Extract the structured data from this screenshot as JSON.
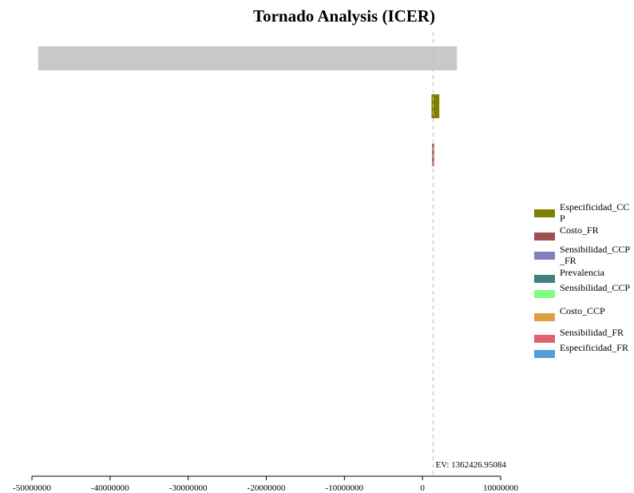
{
  "chart_data": {
    "type": "tornado",
    "title": "Tornado Analysis (ICER)",
    "expected_value": 1362426.95084,
    "ev_label": "EV: 1362426.95084",
    "xlim": [
      -50000000,
      10000000
    ],
    "x_ticks": [
      -50000000,
      -40000000,
      -30000000,
      -20000000,
      -10000000,
      0,
      10000000
    ],
    "x_tick_labels": [
      "-50000000",
      "-40000000",
      "-30000000",
      "-20000000",
      "-10000000",
      "0",
      "10000000"
    ],
    "bars": [
      {
        "low": -49200000,
        "high": 4400000,
        "color": "#c8c8c8"
      },
      {
        "low": 1150000,
        "high": 2150000,
        "color": "#808000"
      },
      {
        "low": 1230000,
        "high": 1480000,
        "color": "#a05050"
      }
    ],
    "legend": [
      {
        "label": "Especificidad_CCP",
        "color": "#808000"
      },
      {
        "label": "Costo_FR",
        "color": "#a05050"
      },
      {
        "label": "Sensibilidad_CCP_FR",
        "color": "#8080c0"
      },
      {
        "label": "Prevalencia",
        "color": "#408080"
      },
      {
        "label": "Sensibilidad_CCP",
        "color": "#80ff80"
      },
      {
        "label": "Costo_CCP",
        "color": "#e0a040"
      },
      {
        "label": "Sensibilidad_FR",
        "color": "#e06070"
      },
      {
        "label": "Especificidad_FR",
        "color": "#50a0d8"
      }
    ]
  }
}
